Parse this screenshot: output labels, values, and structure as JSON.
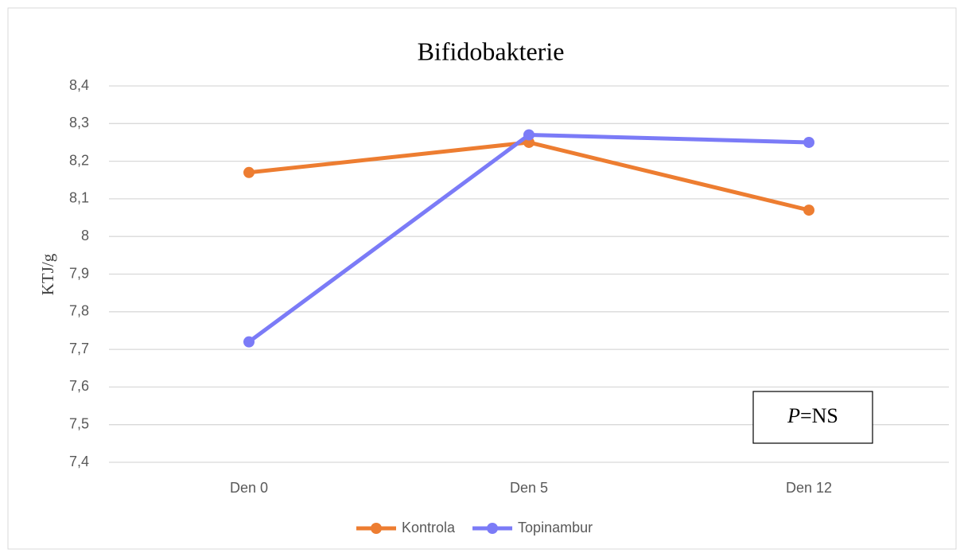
{
  "chart_data": {
    "type": "line",
    "title": "Bifidobakterie",
    "ylabel": "KTJ/g",
    "categories": [
      "Den 0",
      "Den 5",
      "Den 12"
    ],
    "series": [
      {
        "name": "Kontrola",
        "color": "#ed7d31",
        "values": [
          8.17,
          8.25,
          8.07
        ]
      },
      {
        "name": "Topinambur",
        "color": "#7b7bf7",
        "values": [
          7.72,
          8.27,
          8.25
        ]
      }
    ],
    "ylim": [
      7.4,
      8.4
    ],
    "yticks": [
      {
        "value": 7.4,
        "label": "7,4"
      },
      {
        "value": 7.5,
        "label": "7,5"
      },
      {
        "value": 7.6,
        "label": "7,6"
      },
      {
        "value": 7.7,
        "label": "7,7"
      },
      {
        "value": 7.8,
        "label": "7,8"
      },
      {
        "value": 7.9,
        "label": "7,9"
      },
      8,
      {
        "value": 8.1,
        "label": "8,1"
      },
      {
        "value": 8.2,
        "label": "8,2"
      },
      {
        "value": 8.3,
        "label": "8,3"
      },
      {
        "value": 8.4,
        "label": "8,4"
      }
    ],
    "grid": true,
    "legend": "bottom",
    "annotation": [
      "P",
      "=NS"
    ]
  }
}
